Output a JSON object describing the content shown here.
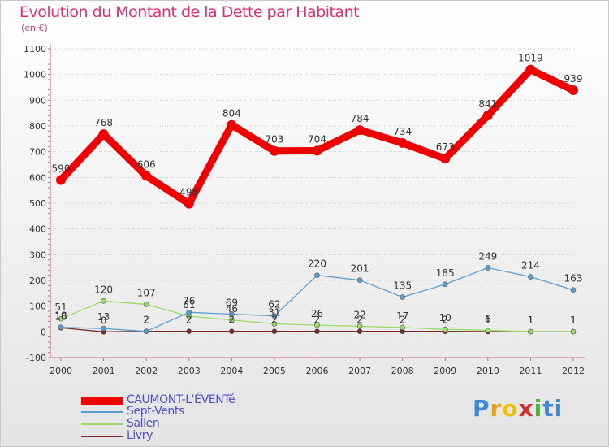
{
  "chart_data": {
    "type": "line",
    "title": "Evolution du Montant de la Dette par Habitant",
    "subtitle": "(en €)",
    "xlabel": "",
    "ylabel": "",
    "categories": [
      "2000",
      "2001",
      "2002",
      "2003",
      "2004",
      "2005",
      "2006",
      "2007",
      "2008",
      "2009",
      "2010",
      "2011",
      "2012"
    ],
    "ylim": [
      -100,
      1100
    ],
    "yticks": [
      -100,
      0,
      100,
      200,
      300,
      400,
      500,
      600,
      700,
      800,
      900,
      1000,
      1100
    ],
    "grid": "horizontal-dotted",
    "legend_position": "bottom-left",
    "series": [
      {
        "name": "CAUMONT-L'ÉVENTé",
        "color": "#ee0000",
        "width": 9,
        "point_radius": 6,
        "values": [
          590,
          768,
          606,
          498,
          804,
          703,
          704,
          784,
          734,
          673,
          841,
          1019,
          939
        ],
        "labels": [
          "590",
          "768",
          "606",
          "498",
          "804",
          "703",
          "704",
          "784",
          "734",
          "673",
          "841",
          "1019",
          "939"
        ]
      },
      {
        "name": "Sept-Vents",
        "color": "#5a9fd4",
        "width": 1.3,
        "point_radius": 3,
        "values": [
          18,
          13,
          2,
          76,
          69,
          62,
          220,
          201,
          135,
          185,
          249,
          214,
          163
        ],
        "labels": [
          "18",
          "13",
          "2",
          "76",
          "69",
          "62",
          "220",
          "201",
          "135",
          "185",
          "249",
          "214",
          "163"
        ]
      },
      {
        "name": "Sallen",
        "color": "#99dd66",
        "width": 1.3,
        "point_radius": 3,
        "values": [
          51,
          120,
          107,
          61,
          46,
          31,
          26,
          22,
          17,
          10,
          6,
          1,
          1
        ],
        "labels": [
          "51",
          "120",
          "107",
          "61",
          "46",
          "31",
          "26",
          "22",
          "17",
          "10",
          "6",
          "1",
          "1"
        ]
      },
      {
        "name": "Livry",
        "color": "#7a2a2a",
        "width": 1.3,
        "point_radius": 3,
        "values": [
          16,
          0,
          2,
          2,
          2,
          2,
          2,
          2,
          2,
          2,
          1,
          1,
          1
        ],
        "labels": [
          "16",
          "0",
          "2",
          "2",
          "2",
          "2",
          "2",
          "2",
          "2",
          "2",
          "1",
          "1",
          "1"
        ]
      }
    ]
  },
  "logo": {
    "letters": [
      "P",
      "r",
      "o",
      "x",
      "i",
      "ti"
    ]
  }
}
